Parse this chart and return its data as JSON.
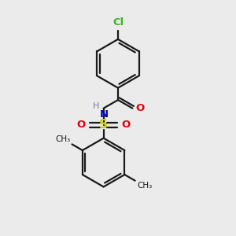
{
  "bg": "#ebebeb",
  "bc": "#1a1a1a",
  "cl_color": "#3cb521",
  "o_color": "#e8000d",
  "n_color": "#0000cd",
  "s_color": "#cccc00",
  "h_color": "#708090",
  "lw": 1.6,
  "dbo": 0.12,
  "ring_r": 1.05,
  "figsize": [
    3.0,
    3.0
  ],
  "dpi": 100,
  "xlim": [
    0,
    10
  ],
  "ylim": [
    0,
    10
  ]
}
